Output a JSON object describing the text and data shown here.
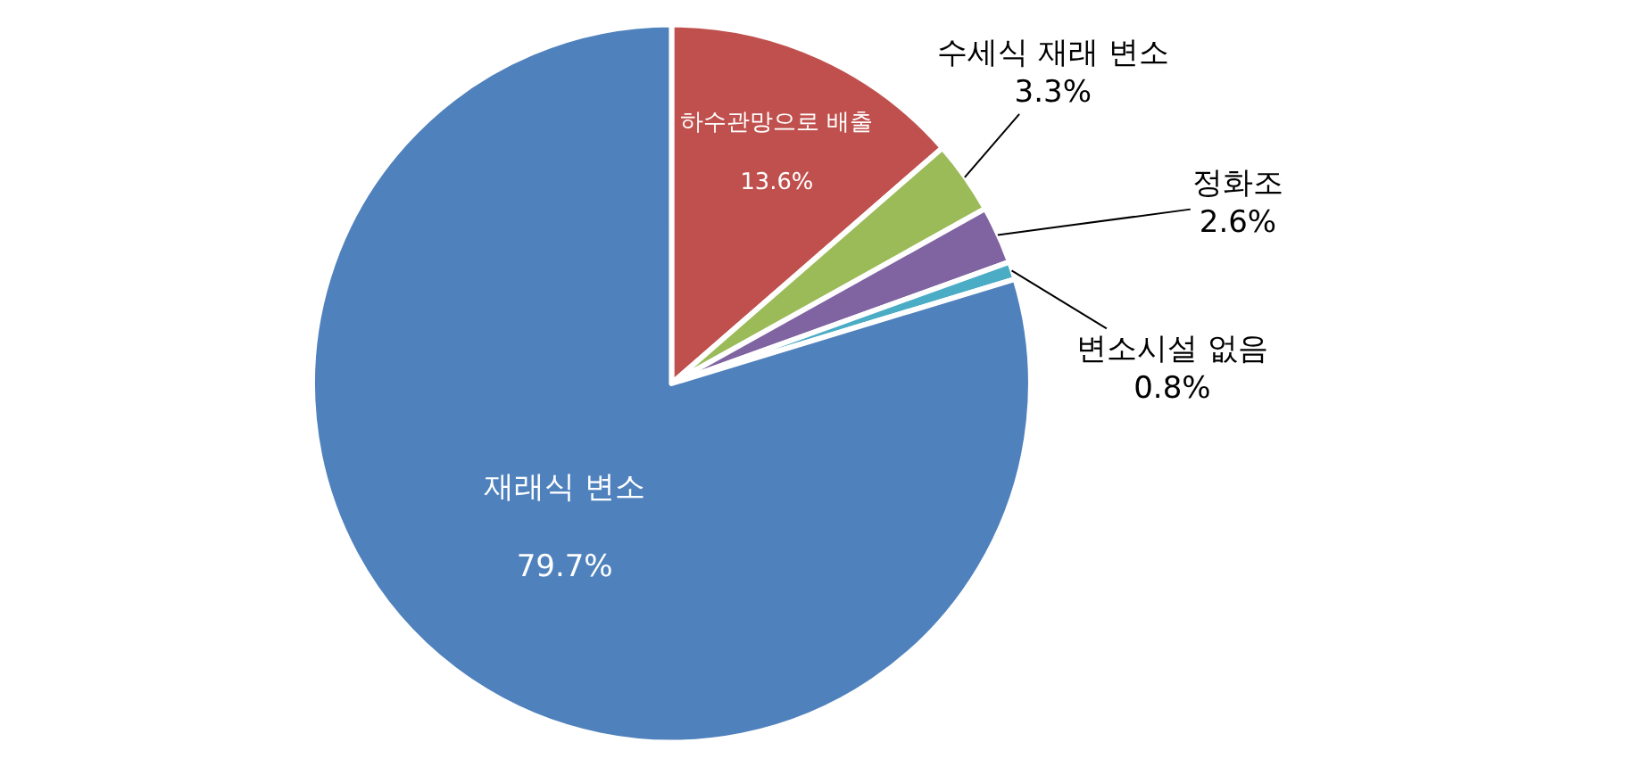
{
  "chart_data": {
    "type": "pie",
    "categories": [
      "하수관망으로 배출",
      "수세식 재래 변소",
      "정화조",
      "변소시설 없음",
      "재래식 변소"
    ],
    "values": [
      13.6,
      3.3,
      2.6,
      0.8,
      79.7
    ],
    "colors": [
      "#c0504d",
      "#9bbb59",
      "#8064a2",
      "#4bacc6",
      "#4f81bd"
    ],
    "value_labels": [
      "13.6%",
      "3.3%",
      "2.6%",
      "0.8%",
      "79.7%"
    ],
    "legend": false
  }
}
